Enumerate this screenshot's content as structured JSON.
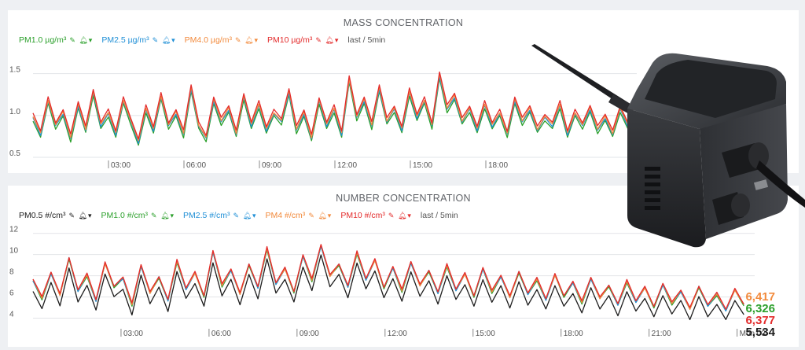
{
  "colors": {
    "pm05": "#1c1c1c",
    "pm10": "#2ca02c",
    "pm25": "#1f8fd6",
    "pm40": "#f28a3c",
    "pm100": "#e32b2b",
    "grid": "#e2e4e8",
    "axis_text": "#555"
  },
  "icons": [
    "pencil-icon",
    "bell-icon",
    "dropdown-caret-icon"
  ],
  "legend_icon_glyphs": "✎ 🔔︎▾",
  "mass": {
    "title": "MASS CONCENTRATION",
    "legend": [
      {
        "label": "PM1.0 µg/m³",
        "color_key": "pm10"
      },
      {
        "label": "PM2.5 µg/m³",
        "color_key": "pm25"
      },
      {
        "label": "PM4.0 µg/m³",
        "color_key": "pm40"
      },
      {
        "label": "PM10 µg/m³",
        "color_key": "pm100"
      }
    ],
    "aggregate": "last / 5min"
  },
  "number": {
    "title": "NUMBER CONCENTRATION",
    "legend": [
      {
        "label": "PM0.5 #/cm³",
        "color_key": "pm05"
      },
      {
        "label": "PM1.0 #/cm³",
        "color_key": "pm10"
      },
      {
        "label": "PM2.5 #/cm³",
        "color_key": "pm25"
      },
      {
        "label": "PM4 #/cm³",
        "color_key": "pm40"
      },
      {
        "label": "PM10 #/cm³",
        "color_key": "pm100"
      }
    ],
    "aggregate": "last / 5min",
    "current_values": [
      {
        "text": "6,417",
        "color_key": "pm40"
      },
      {
        "text": "6,326",
        "color_key": "pm10"
      },
      {
        "text": "6,377",
        "color_key": "pm100"
      },
      {
        "text": "5,534",
        "color_key": "pm05"
      }
    ]
  },
  "chart_data": [
    {
      "type": "line",
      "title": "MASS CONCENTRATION",
      "x_range_hours": [
        0,
        24
      ],
      "xticks": [
        {
          "hour": 3,
          "label": "03:00"
        },
        {
          "hour": 6,
          "label": "06:00"
        },
        {
          "hour": 9,
          "label": "09:00"
        },
        {
          "hour": 12,
          "label": "12:00"
        },
        {
          "hour": 15,
          "label": "15:00"
        },
        {
          "hour": 18,
          "label": "18:00"
        }
      ],
      "yticks": [
        0.5,
        1.0,
        1.5
      ],
      "ytick_labels": [
        "0.5",
        "1.0",
        "1.5"
      ],
      "ylim": [
        0.5,
        1.6
      ],
      "grid": true,
      "series_base": [
        1.0,
        0.8,
        1.2,
        0.9,
        1.05,
        0.75,
        1.15,
        0.85,
        1.3,
        0.9,
        1.05,
        0.8,
        1.2,
        0.95,
        0.7,
        1.1,
        0.85,
        1.25,
        0.9,
        1.05,
        0.8,
        1.35,
        0.9,
        0.75,
        1.2,
        0.95,
        1.1,
        0.8,
        1.25,
        0.9,
        1.15,
        0.85,
        1.05,
        0.95,
        1.3,
        0.85,
        1.05,
        0.75,
        1.2,
        0.9,
        1.1,
        0.8,
        1.45,
        1.0,
        1.2,
        0.9,
        1.35,
        0.95,
        1.1,
        0.85,
        1.3,
        1.0,
        1.2,
        0.9,
        1.5,
        1.1,
        1.25,
        0.95,
        1.1,
        0.85,
        1.15,
        0.9,
        1.05,
        0.8,
        1.2,
        0.95,
        1.1,
        0.85,
        1.0,
        0.9,
        1.15,
        0.8,
        1.05,
        0.9,
        1.1,
        0.85,
        1.0,
        0.8,
        1.1,
        0.9
      ],
      "series": [
        {
          "name": "PM1.0 µg/m³",
          "color_key": "pm10",
          "offset": -0.06
        },
        {
          "name": "PM2.5 µg/m³",
          "color_key": "pm25",
          "offset": -0.03
        },
        {
          "name": "PM4.0 µg/m³",
          "color_key": "pm40",
          "offset": -0.01
        },
        {
          "name": "PM10 µg/m³",
          "color_key": "pm100",
          "offset": 0.02
        }
      ]
    },
    {
      "type": "line",
      "title": "NUMBER CONCENTRATION",
      "x_range_hours": [
        0,
        24.6
      ],
      "xticks": [
        {
          "hour": 3,
          "label": "03:00"
        },
        {
          "hour": 6,
          "label": "06:00"
        },
        {
          "hour": 9,
          "label": "09:00"
        },
        {
          "hour": 12,
          "label": "12:00"
        },
        {
          "hour": 15,
          "label": "15:00"
        },
        {
          "hour": 18,
          "label": "18:00"
        },
        {
          "hour": 21,
          "label": "21:00"
        },
        {
          "hour": 24,
          "label": "Mon 03"
        }
      ],
      "yticks": [
        4,
        6,
        8,
        10,
        12
      ],
      "ytick_labels": [
        "4",
        "6",
        "8",
        "10",
        "12"
      ],
      "ylim": [
        3.3,
        12.2
      ],
      "grid": true,
      "series_base": [
        7.5,
        5.8,
        8.2,
        6.1,
        9.6,
        6.5,
        8.0,
        5.6,
        9.1,
        6.9,
        7.7,
        5.2,
        8.9,
        6.3,
        7.8,
        5.6,
        9.3,
        6.7,
        8.2,
        6.0,
        10.2,
        7.0,
        8.5,
        6.2,
        9.0,
        6.8,
        10.5,
        7.2,
        8.6,
        6.4,
        9.8,
        7.5,
        10.8,
        7.9,
        9.0,
        6.9,
        10.1,
        7.6,
        9.4,
        6.8,
        8.7,
        6.5,
        9.2,
        7.0,
        8.4,
        6.3,
        8.9,
        6.6,
        8.1,
        6.0,
        8.6,
        6.4,
        7.9,
        5.9,
        8.3,
        6.2,
        7.6,
        5.7,
        8.0,
        6.0,
        7.3,
        5.4,
        7.7,
        5.8,
        7.0,
        5.2,
        7.4,
        5.5,
        6.8,
        5.0,
        7.1,
        5.3,
        6.5,
        4.8,
        6.9,
        5.1,
        6.2,
        4.7,
        6.6,
        5.2
      ],
      "series": [
        {
          "name": "PM0.5 #/cm³",
          "color_key": "pm05",
          "offset": -0.9
        },
        {
          "name": "PM1.0 #/cm³",
          "color_key": "pm10",
          "offset": 0.0
        },
        {
          "name": "PM2.5 #/cm³",
          "color_key": "pm25",
          "offset": 0.05
        },
        {
          "name": "PM4 #/cm³",
          "color_key": "pm40",
          "offset": 0.1
        },
        {
          "name": "PM10 #/cm³",
          "color_key": "pm100",
          "offset": 0.18
        }
      ]
    }
  ]
}
